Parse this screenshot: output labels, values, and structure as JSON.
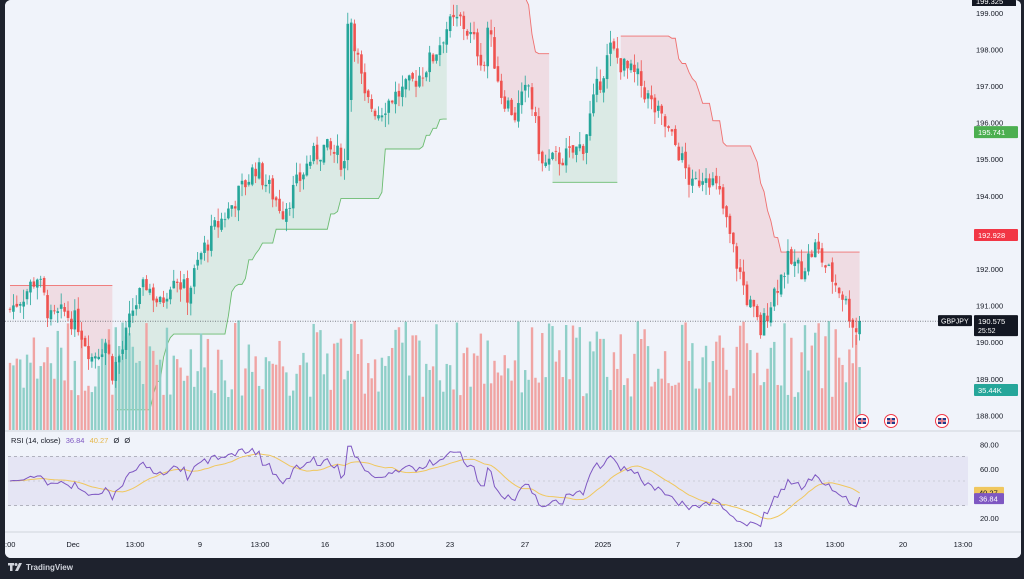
{
  "chart_data": {
    "type": "candlestick",
    "symbol": "GBPJPY",
    "last_price": "190.575",
    "countdown": "25:52",
    "y_axis_labels": [
      "199.000",
      "198.000",
      "197.000",
      "196.000",
      "195.000",
      "194.000",
      "193.000",
      "192.000",
      "191.000",
      "190.000",
      "189.000",
      "188.000"
    ],
    "y_top_label": "199.325",
    "y_range": [
      187.6,
      199.35
    ],
    "x_labels": [
      ":00",
      "Dec",
      "13:00",
      "9",
      "13:00",
      "16",
      "13:00",
      "23",
      "27",
      "2025",
      "7",
      "13:00",
      "13",
      "13:00",
      "20",
      "13:00"
    ],
    "price_badges": [
      {
        "label": "195.741",
        "value": 195.741,
        "color": "#4caf50"
      },
      {
        "label": "192.928",
        "value": 192.928,
        "color": "#f23645"
      }
    ],
    "volume_badge": "35.44K",
    "rsi": {
      "legend": "RSI (14, close)",
      "value": "36.84",
      "ma_value": "40.27",
      "extra1": "Ø",
      "extra2": "Ø",
      "levels": [
        "80.00",
        "60.00",
        "20.00"
      ],
      "range": [
        10,
        90
      ]
    },
    "colors": {
      "up": "#26a69a",
      "down": "#ef5350",
      "vol_up": "#8fcfc8",
      "vol_down": "#f0a4a3",
      "rsi": "#7e57c2",
      "rsi_ma": "#f0c75e",
      "band_up": "#4caf50",
      "band_down": "#ef5350"
    }
  },
  "footer": {
    "brand": "TradingView"
  }
}
